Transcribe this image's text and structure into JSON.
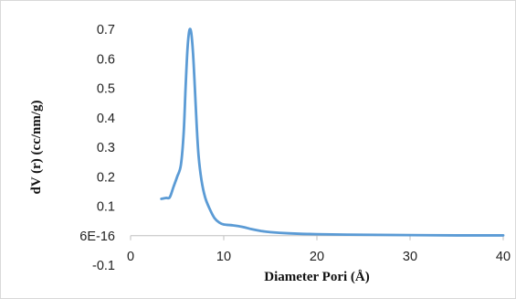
{
  "chart_data": {
    "type": "line",
    "title": "",
    "xlabel": "Diameter Pori (Å)",
    "ylabel": "dV (r) (cc/nm/g)",
    "xlim": [
      0,
      40
    ],
    "ylim": [
      -0.1,
      0.7
    ],
    "x_ticks": [
      "0",
      "10",
      "20",
      "30",
      "40"
    ],
    "y_ticks": [
      "-0.1",
      "6E-16",
      "0.1",
      "0.2",
      "0.3",
      "0.4",
      "0.5",
      "0.6",
      "0.7"
    ],
    "grid": false,
    "legend": "none",
    "series": [
      {
        "color": "#5b9bd5",
        "x": [
          3.3,
          3.8,
          4.2,
          4.6,
          5.0,
          5.4,
          5.7,
          5.9,
          6.1,
          6.3,
          6.5,
          6.7,
          6.9,
          7.1,
          7.3,
          7.6,
          8.0,
          8.5,
          9.0,
          9.5,
          10.0,
          11.0,
          12.0,
          13.0,
          14.0,
          15.0,
          17.0,
          20.0,
          25.0,
          30.0,
          35.0,
          40.0
        ],
        "y": [
          0.125,
          0.128,
          0.13,
          0.165,
          0.2,
          0.24,
          0.35,
          0.5,
          0.63,
          0.695,
          0.69,
          0.62,
          0.5,
          0.37,
          0.27,
          0.19,
          0.13,
          0.09,
          0.06,
          0.045,
          0.038,
          0.035,
          0.03,
          0.022,
          0.016,
          0.012,
          0.008,
          0.005,
          0.003,
          0.002,
          0.001,
          0.001
        ]
      }
    ]
  }
}
